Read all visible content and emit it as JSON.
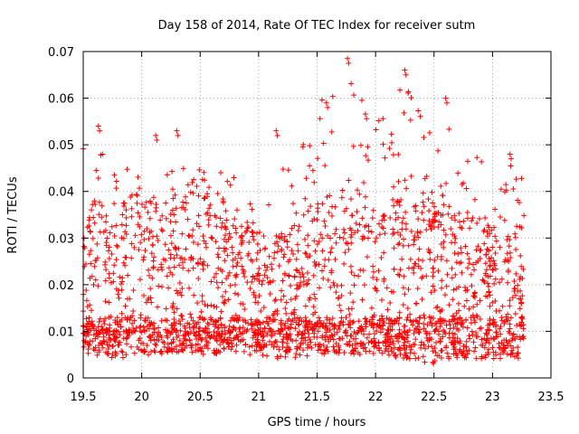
{
  "chart_data": {
    "type": "scatter",
    "title": "Day 158 of 2014, Rate Of TEC Index for receiver sutm",
    "xlabel": "GPS time / hours",
    "ylabel": "ROTI / TECUs",
    "xlim": [
      19.5,
      23.5
    ],
    "ylim": [
      0,
      0.07
    ],
    "x_ticks": [
      19.5,
      20,
      20.5,
      21,
      21.5,
      22,
      22.5,
      23,
      23.5
    ],
    "x_tick_labels": [
      "19.5",
      "20",
      "20.5",
      "21",
      "21.5",
      "22",
      "22.5",
      "23",
      "23.5"
    ],
    "y_ticks": [
      0,
      0.01,
      0.02,
      0.03,
      0.04,
      0.05,
      0.06,
      0.07
    ],
    "y_tick_labels": [
      "0",
      "0.01",
      "0.02",
      "0.03",
      "0.04",
      "0.05",
      "0.06",
      "0.07"
    ],
    "grid": true,
    "marker": "+",
    "color": "#ff0000",
    "series": [
      {
        "name": "ROTI",
        "x_range": [
          19.5,
          23.27
        ],
        "envelope_hours": [
          19.5,
          19.6,
          19.75,
          20.0,
          20.2,
          20.3,
          20.5,
          20.8,
          21.0,
          21.2,
          21.5,
          21.75,
          22.0,
          22.3,
          22.5,
          22.6,
          22.8,
          23.0,
          23.27
        ],
        "envelope_typical": [
          0.015,
          0.02,
          0.018,
          0.02,
          0.018,
          0.02,
          0.022,
          0.018,
          0.016,
          0.016,
          0.018,
          0.022,
          0.02,
          0.022,
          0.02,
          0.02,
          0.018,
          0.016,
          0.016
        ],
        "envelope_max": [
          0.05,
          0.054,
          0.047,
          0.045,
          0.052,
          0.053,
          0.045,
          0.047,
          0.035,
          0.053,
          0.058,
          0.068,
          0.055,
          0.066,
          0.05,
          0.06,
          0.052,
          0.045,
          0.046
        ],
        "envelope_min": [
          0.005,
          0.005,
          0.004,
          0.005,
          0.005,
          0.005,
          0.005,
          0.005,
          0.005,
          0.004,
          0.005,
          0.005,
          0.005,
          0.004,
          0.003,
          0.004,
          0.004,
          0.004,
          0.004
        ],
        "sample_peaks": [
          {
            "x": 19.63,
            "y": 0.054
          },
          {
            "x": 20.12,
            "y": 0.052
          },
          {
            "x": 20.3,
            "y": 0.053
          },
          {
            "x": 21.15,
            "y": 0.053
          },
          {
            "x": 21.58,
            "y": 0.059
          },
          {
            "x": 21.76,
            "y": 0.0685
          },
          {
            "x": 22.25,
            "y": 0.066
          },
          {
            "x": 22.6,
            "y": 0.06
          },
          {
            "x": 23.15,
            "y": 0.048
          }
        ]
      }
    ]
  }
}
